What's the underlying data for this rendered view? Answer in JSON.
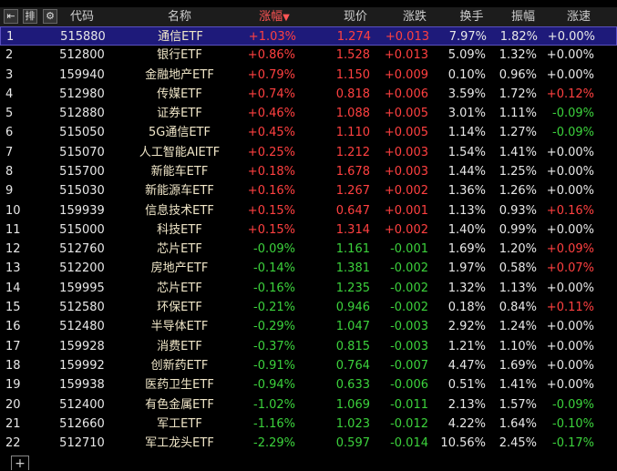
{
  "table": {
    "header": [
      "代码",
      "名称",
      "涨幅",
      "现价",
      "涨跌",
      "换手",
      "振幅",
      "涨速"
    ],
    "rows": [
      [
        "1",
        "515880",
        "通信ETF",
        "+1.03%",
        "1.274",
        "+0.013",
        "7.97%",
        "1.82%",
        "+0.00%"
      ],
      [
        "2",
        "512800",
        "银行ETF",
        "+0.86%",
        "1.528",
        "+0.013",
        "5.09%",
        "1.32%",
        "+0.00%"
      ],
      [
        "3",
        "159940",
        "金融地产ETF",
        "+0.79%",
        "1.150",
        "+0.009",
        "0.10%",
        "0.96%",
        "+0.00%"
      ],
      [
        "4",
        "512980",
        "传媒ETF",
        "+0.74%",
        "0.818",
        "+0.006",
        "3.59%",
        "1.72%",
        "+0.12%"
      ],
      [
        "5",
        "512880",
        "证券ETF",
        "+0.46%",
        "1.088",
        "+0.005",
        "3.01%",
        "1.11%",
        "-0.09%"
      ],
      [
        "6",
        "515050",
        "5G通信ETF",
        "+0.45%",
        "1.110",
        "+0.005",
        "1.14%",
        "1.27%",
        "-0.09%"
      ],
      [
        "7",
        "515070",
        "人工智能AIETF",
        "+0.25%",
        "1.212",
        "+0.003",
        "1.54%",
        "1.41%",
        "+0.00%"
      ],
      [
        "8",
        "515700",
        "新能车ETF",
        "+0.18%",
        "1.678",
        "+0.003",
        "1.44%",
        "1.25%",
        "+0.00%"
      ],
      [
        "9",
        "515030",
        "新能源车ETF",
        "+0.16%",
        "1.267",
        "+0.002",
        "1.36%",
        "1.26%",
        "+0.00%"
      ],
      [
        "10",
        "159939",
        "信息技术ETF",
        "+0.15%",
        "0.647",
        "+0.001",
        "1.13%",
        "0.93%",
        "+0.16%"
      ],
      [
        "11",
        "515000",
        "科技ETF",
        "+0.15%",
        "1.314",
        "+0.002",
        "1.40%",
        "0.99%",
        "+0.00%"
      ],
      [
        "12",
        "512760",
        "芯片ETF",
        "-0.09%",
        "1.161",
        "-0.001",
        "1.69%",
        "1.20%",
        "+0.09%"
      ],
      [
        "13",
        "512200",
        "房地产ETF",
        "-0.14%",
        "1.381",
        "-0.002",
        "1.97%",
        "0.58%",
        "+0.07%"
      ],
      [
        "14",
        "159995",
        "芯片ETF",
        "-0.16%",
        "1.235",
        "-0.002",
        "1.32%",
        "1.13%",
        "+0.00%"
      ],
      [
        "15",
        "512580",
        "环保ETF",
        "-0.21%",
        "0.946",
        "-0.002",
        "0.18%",
        "0.84%",
        "+0.11%"
      ],
      [
        "16",
        "512480",
        "半导体ETF",
        "-0.29%",
        "1.047",
        "-0.003",
        "2.92%",
        "1.24%",
        "+0.00%"
      ],
      [
        "17",
        "159928",
        "消费ETF",
        "-0.37%",
        "0.815",
        "-0.003",
        "1.21%",
        "1.10%",
        "+0.00%"
      ],
      [
        "18",
        "159992",
        "创新药ETF",
        "-0.91%",
        "0.764",
        "-0.007",
        "4.47%",
        "1.69%",
        "+0.00%"
      ],
      [
        "19",
        "159938",
        "医药卫生ETF",
        "-0.94%",
        "0.633",
        "-0.006",
        "0.51%",
        "1.41%",
        "+0.00%"
      ],
      [
        "20",
        "512400",
        "有色金属ETF",
        "-1.02%",
        "1.069",
        "-0.011",
        "2.13%",
        "1.57%",
        "-0.09%"
      ],
      [
        "21",
        "512660",
        "军工ETF",
        "-1.16%",
        "1.023",
        "-0.012",
        "4.22%",
        "1.64%",
        "-0.10%"
      ],
      [
        "22",
        "512710",
        "军工龙头ETF",
        "-2.29%",
        "0.597",
        "-0.014",
        "10.56%",
        "2.45%",
        "-0.17%"
      ]
    ]
  }
}
